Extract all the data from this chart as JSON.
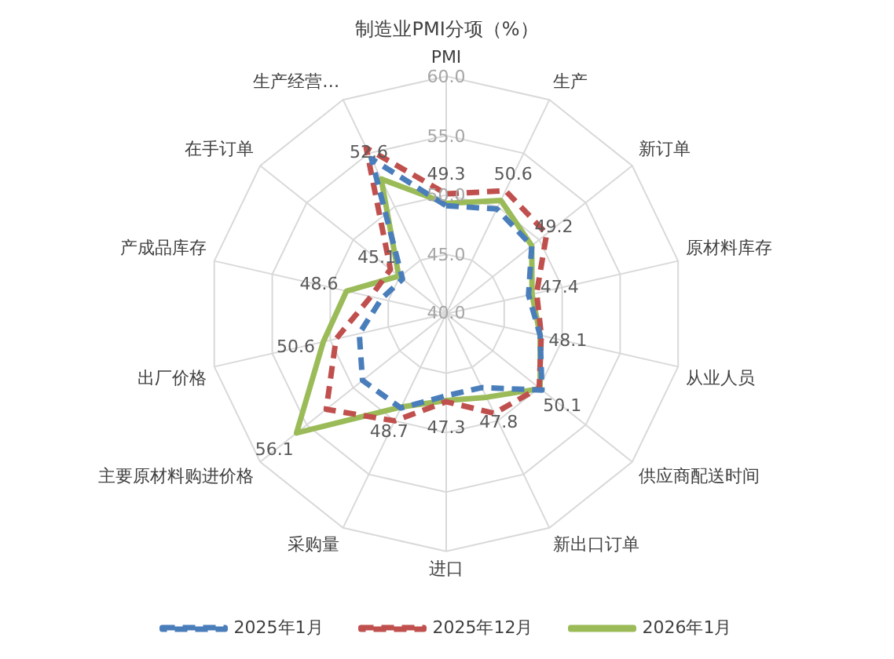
{
  "chart_data": {
    "type": "radar",
    "title": "制造业PMI分项（%）",
    "categories": [
      "PMI",
      "生产",
      "新订单",
      "原材料库存",
      "从业人员",
      "供应商配送时间",
      "新出口订单",
      "进口",
      "采购量",
      "主要原材料购进价格",
      "出厂价格",
      "产成品库存",
      "在手订单",
      "生产经营…"
    ],
    "ylim": [
      40,
      60
    ],
    "yticks": [
      {
        "value": 40,
        "label": "40.0"
      },
      {
        "value": 45,
        "label": "45.0"
      },
      {
        "value": 50,
        "label": "50.0"
      },
      {
        "value": 55,
        "label": "55.0"
      },
      {
        "value": 60,
        "label": "60.0"
      }
    ],
    "grid": true,
    "legend": "bottom",
    "marker": "none",
    "series": [
      {
        "name": "2025年1月",
        "color": "#4a7ebb",
        "line_style": "dashed",
        "values": [
          49.1,
          49.8,
          49.2,
          47.1,
          48.1,
          50.3,
          46.9,
          46.9,
          48.8,
          49.0,
          47.5,
          45.6,
          44.7,
          54.5
        ]
      },
      {
        "name": "2025年12月",
        "color": "#c0504d",
        "line_style": "dashed",
        "values": [
          50.1,
          51.5,
          50.8,
          47.8,
          48.2,
          50.0,
          49.3,
          47.4,
          50.0,
          52.9,
          49.5,
          46.5,
          46.0,
          55.5
        ]
      },
      {
        "name": "2026年1月",
        "color": "#9bbb59",
        "line_style": "solid",
        "values": [
          49.3,
          50.6,
          49.2,
          47.4,
          48.1,
          50.1,
          47.8,
          47.3,
          48.7,
          56.1,
          50.6,
          48.6,
          45.1,
          52.6
        ],
        "value_labels": [
          "49.3",
          "50.6",
          "49.2",
          "47.4",
          "48.1",
          "50.1",
          "47.8",
          "47.3",
          "48.7",
          "56.1",
          "50.6",
          "48.6",
          "45.1",
          "52.6"
        ]
      }
    ]
  }
}
